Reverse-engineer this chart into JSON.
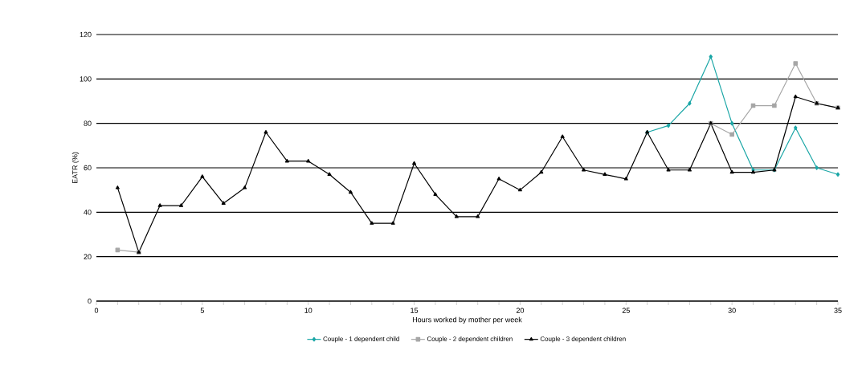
{
  "chart_data": {
    "type": "line",
    "xlabel": "Hours worked by mother per week",
    "ylabel": "EATR (%)",
    "x": [
      1,
      2,
      3,
      4,
      5,
      6,
      7,
      8,
      9,
      10,
      11,
      12,
      13,
      14,
      15,
      16,
      17,
      18,
      19,
      20,
      21,
      22,
      23,
      24,
      25,
      26,
      27,
      28,
      29,
      30,
      31,
      32,
      33,
      34,
      35
    ],
    "series": [
      {
        "name": "Couple - 1 dependent child",
        "color": "#1aa6a6",
        "marker": "diamond",
        "values": [
          null,
          null,
          null,
          null,
          null,
          null,
          null,
          null,
          null,
          null,
          null,
          null,
          null,
          null,
          null,
          null,
          null,
          null,
          null,
          null,
          null,
          null,
          null,
          null,
          null,
          76,
          79,
          89,
          110,
          80,
          59,
          59,
          78,
          60,
          57
        ]
      },
      {
        "name": "Couple - 2 dependent children",
        "color": "#a6a6a6",
        "marker": "square",
        "values": [
          23,
          22,
          null,
          null,
          null,
          null,
          null,
          null,
          null,
          null,
          null,
          null,
          null,
          null,
          null,
          null,
          null,
          null,
          null,
          null,
          null,
          null,
          null,
          null,
          null,
          null,
          null,
          null,
          80,
          75,
          88,
          88,
          107,
          89,
          87
        ]
      },
      {
        "name": "Couple - 3 dependent children",
        "color": "#000000",
        "marker": "triangle",
        "values": [
          51,
          22,
          43,
          43,
          56,
          44,
          51,
          76,
          63,
          63,
          57,
          49,
          35,
          35,
          62,
          48,
          38,
          38,
          55,
          50,
          58,
          74,
          59,
          57,
          55,
          76,
          59,
          59,
          80,
          58,
          58,
          59,
          92,
          89,
          87
        ]
      }
    ],
    "xlim": [
      0,
      35
    ],
    "xticks": [
      0,
      5,
      10,
      15,
      20,
      25,
      30,
      35
    ],
    "ylim": [
      0,
      120
    ],
    "yticks": [
      0,
      20,
      40,
      60,
      80,
      100,
      120
    ],
    "grid": "y",
    "legend": "bottom",
    "line_style": "solid"
  }
}
